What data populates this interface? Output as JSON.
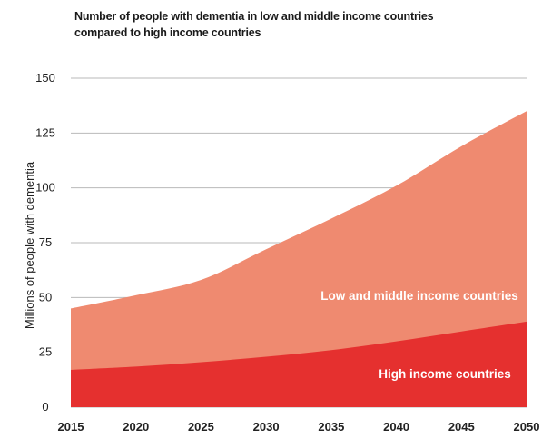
{
  "chart_data": {
    "type": "area",
    "title_lines": [
      "Number of people with dementia in low and middle income countries",
      "compared to high income countries"
    ],
    "xlabel": "",
    "ylabel": "Millions of people with dementia",
    "x": [
      2015,
      2020,
      2025,
      2030,
      2035,
      2040,
      2045,
      2050
    ],
    "xticks": [
      "2015",
      "2020",
      "2025",
      "2030",
      "2035",
      "2040",
      "2045",
      "2050"
    ],
    "yticks": [
      "0",
      "25",
      "50",
      "75",
      "100",
      "125",
      "150"
    ],
    "ylim": [
      0,
      150
    ],
    "stacked": true,
    "grid": true,
    "series": [
      {
        "name": "High income countries",
        "values": [
          17,
          18.5,
          20.5,
          23,
          26,
          30,
          34.5,
          39
        ],
        "color": "#e5302f"
      },
      {
        "name": "Low and middle income countries",
        "values": [
          28,
          32.5,
          37.5,
          49,
          60,
          71,
          84.5,
          96
        ],
        "color": "#ef8a70"
      }
    ]
  }
}
